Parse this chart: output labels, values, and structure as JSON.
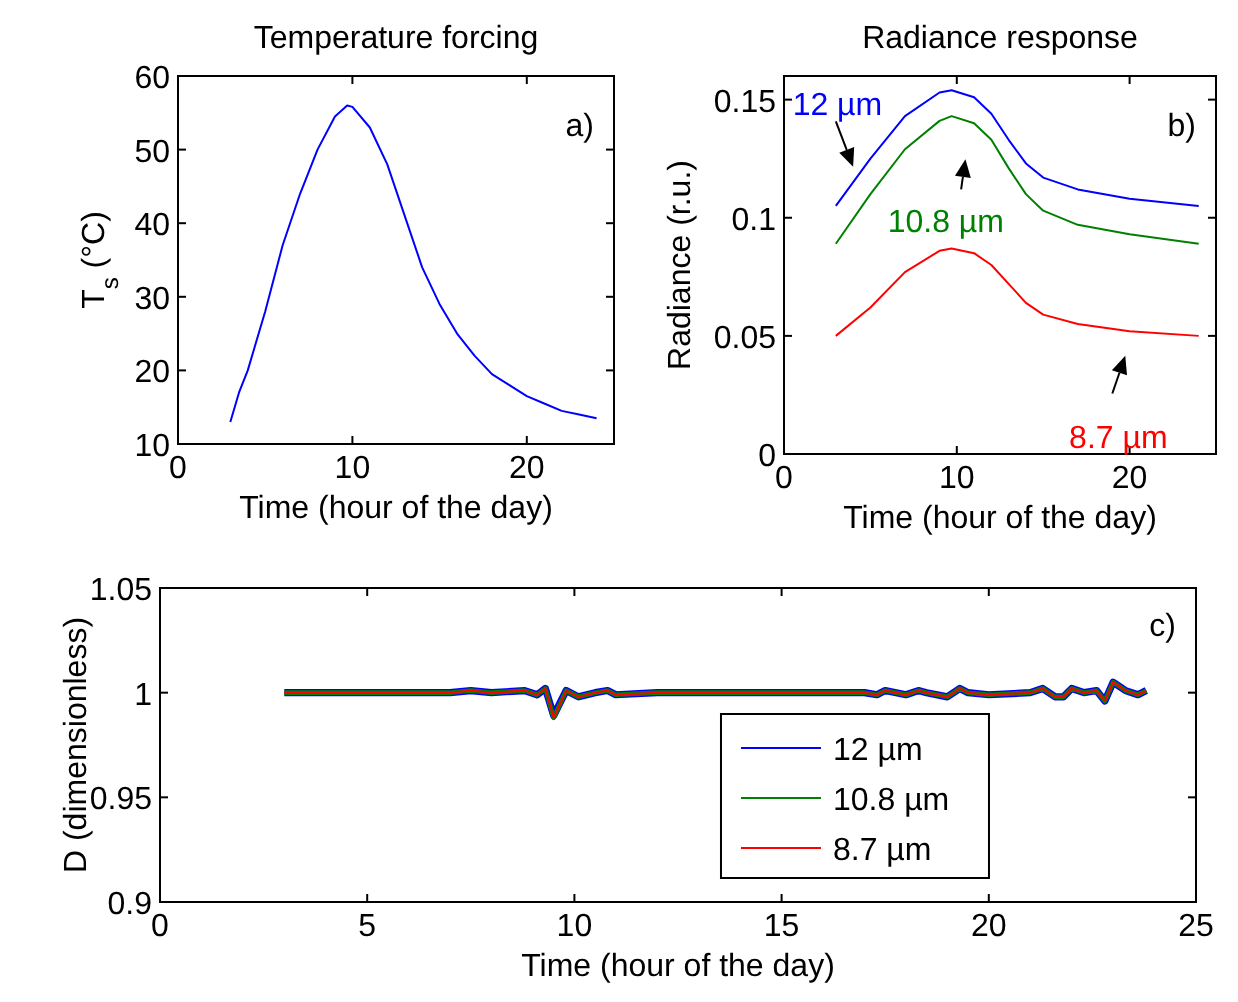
{
  "chart_data": [
    {
      "type": "line",
      "title": "Temperature forcing",
      "xlabel": "Time (hour of the day)",
      "ylabel": "T$_{s}$ (°C)",
      "xlim": [
        0,
        25
      ],
      "xticks": [
        0,
        10,
        20
      ],
      "ylim": [
        10,
        60
      ],
      "yticks": [
        10,
        20,
        30,
        40,
        50,
        60
      ],
      "annotations": [
        "a)"
      ],
      "series": [
        {
          "color": "#0000ff",
          "x": [
            3,
            3.5,
            4,
            5,
            6,
            7,
            8,
            9,
            9.7,
            10,
            11,
            12,
            13,
            14,
            15,
            16,
            17,
            18,
            19,
            20,
            21,
            22,
            23,
            24
          ],
          "values": [
            13,
            17,
            20,
            28,
            37,
            44,
            50,
            54.5,
            56,
            55.8,
            53,
            48,
            41,
            34,
            29,
            25,
            22,
            19.5,
            18,
            16.5,
            15.5,
            14.5,
            14,
            13.5
          ]
        }
      ]
    },
    {
      "type": "line",
      "title": "Radiance response",
      "xlabel": "Time (hour of the day)",
      "ylabel": "Radiance (r.u.)",
      "xlim": [
        0,
        25
      ],
      "xticks": [
        0,
        10,
        20
      ],
      "ylim": [
        0,
        0.16
      ],
      "yticks": [
        0,
        0.05,
        0.1,
        0.15
      ],
      "annotations": [
        "b)"
      ],
      "series": [
        {
          "name": "12 µm",
          "color": "#0000ff",
          "x": [
            3,
            5,
            7,
            9,
            9.7,
            11,
            12,
            13,
            14,
            15,
            17,
            20,
            24
          ],
          "values": [
            0.105,
            0.125,
            0.143,
            0.153,
            0.154,
            0.151,
            0.144,
            0.133,
            0.123,
            0.117,
            0.112,
            0.108,
            0.105
          ]
        },
        {
          "name": "10.8 µm",
          "color": "#008000",
          "x": [
            3,
            5,
            7,
            9,
            9.7,
            11,
            12,
            13,
            14,
            15,
            17,
            20,
            24
          ],
          "values": [
            0.089,
            0.11,
            0.129,
            0.141,
            0.143,
            0.14,
            0.133,
            0.121,
            0.11,
            0.103,
            0.097,
            0.093,
            0.089
          ]
        },
        {
          "name": "8.7 µm",
          "color": "#ff0000",
          "x": [
            3,
            5,
            7,
            9,
            9.7,
            11,
            12,
            13,
            14,
            15,
            17,
            20,
            24
          ],
          "values": [
            0.05,
            0.062,
            0.077,
            0.086,
            0.087,
            0.085,
            0.08,
            0.072,
            0.064,
            0.059,
            0.055,
            0.052,
            0.05
          ]
        }
      ]
    },
    {
      "type": "line",
      "xlabel": "Time (hour of the day)",
      "ylabel": "D (dimensionless)",
      "xlim": [
        0,
        25
      ],
      "xticks": [
        0,
        5,
        10,
        15,
        20,
        25
      ],
      "ylim": [
        0.9,
        1.05
      ],
      "yticks": [
        0.9,
        0.95,
        1,
        1.05
      ],
      "annotations": [
        "c)"
      ],
      "legend": "bottom",
      "x": [
        3,
        4,
        5,
        6,
        7,
        7.5,
        8,
        8.8,
        9.1,
        9.3,
        9.5,
        9.8,
        10.1,
        10.5,
        10.8,
        11,
        12,
        13,
        14,
        15,
        16,
        17,
        17.3,
        17.5,
        18,
        18.3,
        18.5,
        19,
        19.3,
        19.5,
        20,
        21,
        21.3,
        21.6,
        21.8,
        22,
        22.3,
        22.6,
        22.8,
        23,
        23.3,
        23.6,
        23.8
      ],
      "series": [
        {
          "name": "12 µm",
          "color": "#0000ff",
          "values": [
            1,
            1,
            1,
            1,
            1,
            1.001,
            1,
            1.001,
            0.999,
            1.002,
            0.989,
            1.001,
            0.998,
            1,
            1.001,
            0.999,
            1,
            1,
            1,
            1,
            1,
            1,
            0.999,
            1.001,
            0.999,
            1.001,
            1,
            0.998,
            1.002,
            1,
            0.999,
            1,
            1.002,
            0.998,
            0.998,
            1.002,
            1,
            1.001,
            0.996,
            1.005,
            1.001,
            0.999,
            1.001
          ]
        },
        {
          "name": "10.8 µm",
          "color": "#008000",
          "values": [
            1,
            1,
            1,
            1,
            1,
            1.001,
            1,
            1.001,
            0.999,
            1.002,
            0.988,
            1.001,
            0.998,
            1,
            1.001,
            0.999,
            1,
            1,
            1,
            1,
            1,
            1,
            0.999,
            1.001,
            0.999,
            1.001,
            1,
            0.998,
            1.002,
            1,
            0.999,
            1,
            1.002,
            0.998,
            0.998,
            1.002,
            1,
            1.001,
            0.996,
            1.005,
            1.001,
            0.999,
            1.001
          ]
        },
        {
          "name": "8.7 µm",
          "color": "#ff0000",
          "values": [
            1,
            1,
            1,
            1,
            1,
            1.001,
            1,
            1.001,
            0.999,
            1.002,
            0.988,
            1.001,
            0.998,
            1,
            1.001,
            0.999,
            1,
            1,
            1,
            1,
            1,
            1,
            0.999,
            1.001,
            0.999,
            1.001,
            1,
            0.998,
            1.002,
            1,
            0.999,
            1,
            1.002,
            0.998,
            0.998,
            1.002,
            1,
            1.001,
            0.996,
            1.005,
            1.001,
            0.999,
            1.001
          ]
        }
      ]
    }
  ]
}
